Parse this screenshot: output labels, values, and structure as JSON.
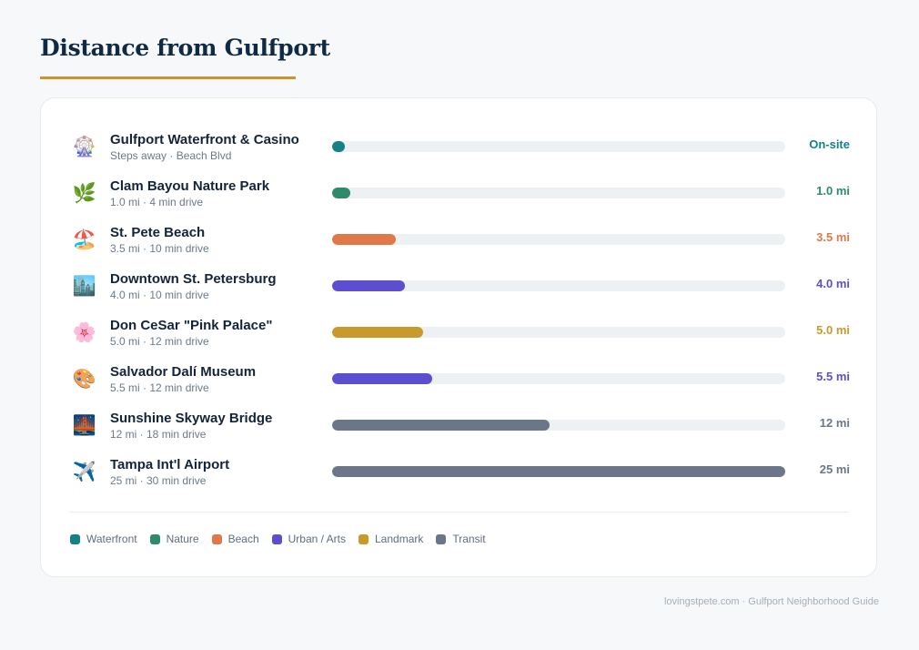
{
  "title": "Distance from Gulfport",
  "chart_data": {
    "type": "bar",
    "orientation": "horizontal",
    "unit": "mi",
    "xlim": [
      0,
      25
    ],
    "items": [
      {
        "name": "Gulfport Waterfront & Casino",
        "meta": "Steps away · Beach Blvd",
        "value": 0,
        "value_label": "On-site",
        "category": "Waterfront",
        "icon": "ferris-wheel-icon",
        "glyph": "🎡"
      },
      {
        "name": "Clam Bayou Nature Park",
        "meta": "1.0 mi · 4 min drive",
        "value": 1.0,
        "value_label": "1.0 mi",
        "category": "Nature",
        "icon": "leaf-icon",
        "glyph": "🌿"
      },
      {
        "name": "St. Pete Beach",
        "meta": "3.5 mi · 10 min drive",
        "value": 3.5,
        "value_label": "3.5 mi",
        "category": "Beach",
        "icon": "beach-umbrella-icon",
        "glyph": "🏖️"
      },
      {
        "name": "Downtown St. Petersburg",
        "meta": "4.0 mi · 10 min drive",
        "value": 4.0,
        "value_label": "4.0 mi",
        "category": "Urban / Arts",
        "icon": "cityscape-icon",
        "glyph": "🏙️"
      },
      {
        "name": "Don CeSar \"Pink Palace\"",
        "meta": "5.0 mi · 12 min drive",
        "value": 5.0,
        "value_label": "5.0 mi",
        "category": "Landmark",
        "icon": "cherry-blossom-icon",
        "glyph": "🌸"
      },
      {
        "name": "Salvador Dalí Museum",
        "meta": "5.5 mi · 12 min drive",
        "value": 5.5,
        "value_label": "5.5 mi",
        "category": "Urban / Arts",
        "icon": "palette-icon",
        "glyph": "🎨"
      },
      {
        "name": "Sunshine Skyway Bridge",
        "meta": "12 mi · 18 min drive",
        "value": 12,
        "value_label": "12 mi",
        "category": "Transit",
        "icon": "bridge-icon",
        "glyph": "🌉"
      },
      {
        "name": "Tampa Int'l Airport",
        "meta": "25 mi · 30 min drive",
        "value": 25,
        "value_label": "25 mi",
        "category": "Transit",
        "icon": "airplane-icon",
        "glyph": "✈️"
      }
    ],
    "legend": [
      {
        "label": "Waterfront",
        "color": "#13808a"
      },
      {
        "label": "Nature",
        "color": "#2e8b6a"
      },
      {
        "label": "Beach",
        "color": "#e0784a"
      },
      {
        "label": "Urban / Arts",
        "color": "#5b4fcf"
      },
      {
        "label": "Landmark",
        "color": "#c9992c"
      },
      {
        "label": "Transit",
        "color": "#6b7789"
      }
    ]
  },
  "footer": "lovingstpete.com · Gulfport Neighborhood Guide"
}
